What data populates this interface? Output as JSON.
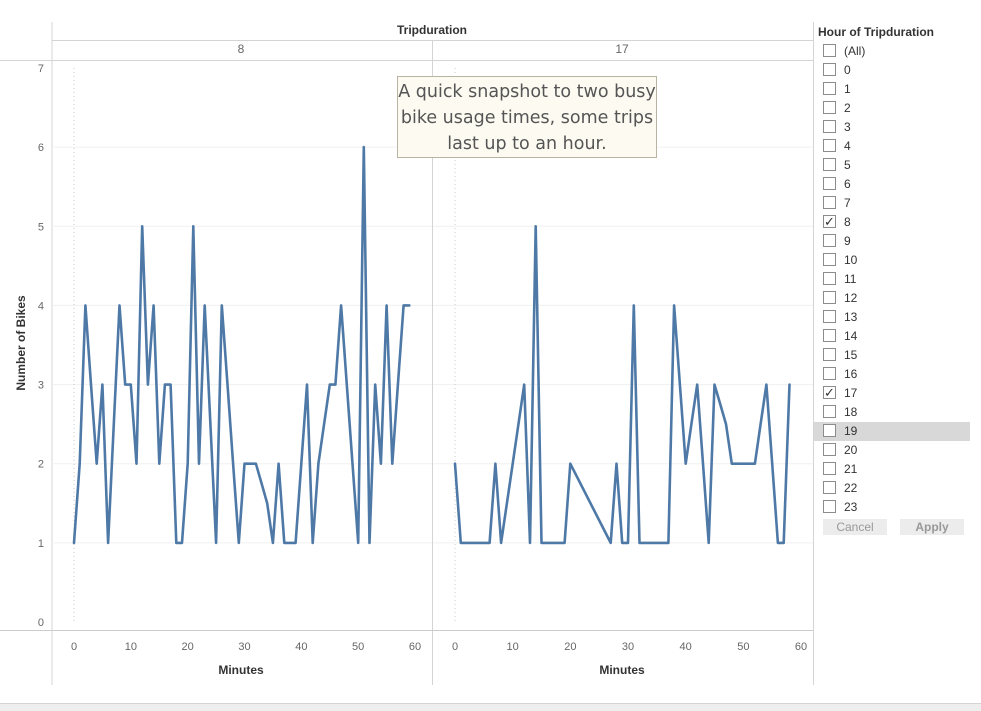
{
  "chart_data": {
    "type": "line",
    "title": "",
    "column_header": "Tripduration",
    "ylabel": "Number of Bikes",
    "xlabel": "Minutes",
    "ylim": [
      0,
      7
    ],
    "yticks": [
      0,
      1,
      2,
      3,
      4,
      5,
      6,
      7
    ],
    "xlim": [
      -4,
      60
    ],
    "xticks": [
      0,
      10,
      20,
      30,
      40,
      50,
      60
    ],
    "color": "#4e79a7",
    "grid": true,
    "panels": [
      {
        "name": "8",
        "x": [
          0,
          1,
          2,
          3,
          4,
          5,
          6,
          7,
          8,
          9,
          10,
          11,
          12,
          13,
          14,
          15,
          16,
          17,
          18,
          19,
          20,
          21,
          22,
          23,
          24,
          25,
          26,
          27,
          28,
          29,
          30,
          31,
          32,
          33,
          34,
          35,
          36,
          37,
          38,
          39,
          40,
          41,
          42,
          43,
          44,
          45,
          46,
          47,
          48,
          49,
          50,
          51,
          52,
          53,
          54,
          55,
          56,
          57,
          58,
          59
        ],
        "values": [
          1,
          2,
          4,
          3,
          2,
          3,
          1,
          2.5,
          4,
          3,
          3,
          2,
          5,
          3,
          4,
          2,
          3,
          3,
          1,
          1,
          2,
          5,
          2,
          4,
          2.5,
          1,
          4,
          3,
          2,
          1,
          2,
          2,
          2,
          1.75,
          1.5,
          1,
          2,
          1,
          1,
          1,
          2,
          3,
          1,
          2,
          2.5,
          3,
          3,
          4,
          3,
          2,
          1,
          6,
          1,
          3,
          2,
          4,
          2,
          3,
          4,
          4
        ]
      },
      {
        "name": "17",
        "x": [
          0,
          1,
          2,
          3,
          4,
          5,
          6,
          7,
          8,
          10,
          12,
          13,
          14,
          15,
          16,
          17,
          18,
          19,
          20,
          27,
          28,
          29,
          30,
          31,
          32,
          33,
          34,
          35,
          36,
          37,
          38,
          39,
          40,
          41,
          42,
          43,
          44,
          45,
          46,
          47,
          48,
          49,
          50,
          51,
          52,
          53,
          54,
          55,
          56,
          57,
          58
        ],
        "values": [
          2,
          1,
          1,
          1,
          1,
          1,
          1,
          2,
          1,
          2,
          3,
          1,
          5,
          1,
          1,
          1,
          1,
          1,
          2,
          1,
          2,
          1,
          1,
          4,
          1,
          1,
          1,
          1,
          1,
          1,
          4,
          3,
          2,
          2.5,
          3,
          2,
          1,
          3,
          2.75,
          2.5,
          2,
          2,
          2,
          2,
          2,
          2.5,
          3,
          2,
          1,
          1,
          3
        ]
      }
    ],
    "annotation": "A quick snapshot to two busy bike usage times, some trips last up to an hour."
  },
  "filter": {
    "title": "Hour of Tripduration",
    "options": [
      {
        "label": "(All)",
        "checked": false
      },
      {
        "label": "0",
        "checked": false
      },
      {
        "label": "1",
        "checked": false
      },
      {
        "label": "2",
        "checked": false
      },
      {
        "label": "3",
        "checked": false
      },
      {
        "label": "4",
        "checked": false
      },
      {
        "label": "5",
        "checked": false
      },
      {
        "label": "6",
        "checked": false
      },
      {
        "label": "7",
        "checked": false
      },
      {
        "label": "8",
        "checked": true
      },
      {
        "label": "9",
        "checked": false
      },
      {
        "label": "10",
        "checked": false
      },
      {
        "label": "11",
        "checked": false
      },
      {
        "label": "12",
        "checked": false
      },
      {
        "label": "13",
        "checked": false
      },
      {
        "label": "14",
        "checked": false
      },
      {
        "label": "15",
        "checked": false
      },
      {
        "label": "16",
        "checked": false
      },
      {
        "label": "17",
        "checked": true
      },
      {
        "label": "18",
        "checked": false
      },
      {
        "label": "19",
        "checked": false,
        "hovered": true
      },
      {
        "label": "20",
        "checked": false
      },
      {
        "label": "21",
        "checked": false
      },
      {
        "label": "22",
        "checked": false
      },
      {
        "label": "23",
        "checked": false
      }
    ],
    "cancel_label": "Cancel",
    "apply_label": "Apply",
    "check_glyph": "✓"
  }
}
